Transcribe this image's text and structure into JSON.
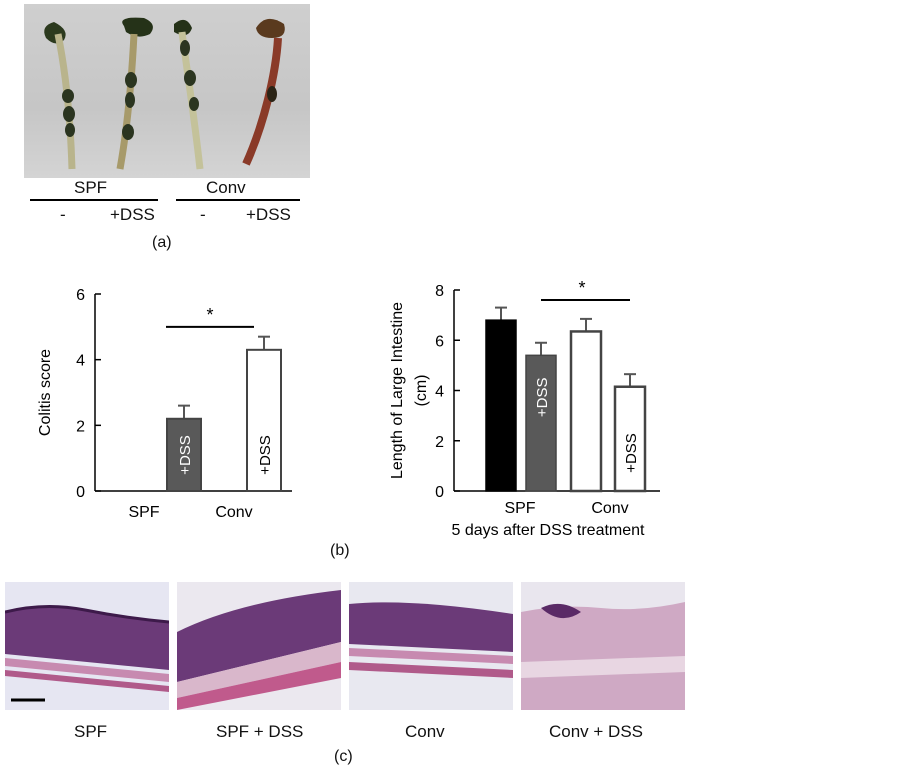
{
  "panel_a": {
    "label": "(a)",
    "groups": [
      {
        "name": "SPF",
        "conditions": [
          "-",
          "+DSS"
        ]
      },
      {
        "name": "Conv",
        "conditions": [
          "-",
          "+DSS"
        ]
      }
    ]
  },
  "panel_b": {
    "label": "(b)",
    "significance": "*",
    "bar_label": "+DSS"
  },
  "panel_c": {
    "label": "(c)",
    "captions": [
      "SPF",
      "SPF + DSS",
      "Conv",
      "Conv + DSS"
    ]
  },
  "colors": {
    "black_bar": "#000000",
    "grey_bar": "#595959",
    "white_bar": "#ffffff",
    "he_pink": "#c98db4",
    "he_purple": "#5a2a66"
  },
  "chart_data": [
    {
      "type": "bar",
      "title": "",
      "xlabel": "",
      "ylabel": "Colitis score",
      "ylim": [
        0,
        6
      ],
      "yticks": [
        0,
        2,
        4,
        6
      ],
      "categories": [
        "SPF",
        "Conv"
      ],
      "series": [
        {
          "name": "+DSS",
          "values": [
            2.2,
            4.3
          ],
          "errors": [
            0.4,
            0.4
          ],
          "fill": [
            "#595959",
            "#ffffff"
          ]
        }
      ],
      "significance": {
        "between": [
          "SPF",
          "Conv"
        ],
        "mark": "*"
      }
    },
    {
      "type": "bar",
      "title": "",
      "xlabel": "5 days after DSS treatment",
      "ylabel": "Length of Large Intestine (cm)",
      "ylabel_lines": [
        "Length of Large Intestine",
        "(cm)"
      ],
      "ylim": [
        0,
        8
      ],
      "yticks": [
        0,
        2,
        4,
        6,
        8
      ],
      "categories": [
        "SPF",
        "Conv"
      ],
      "bars": [
        {
          "group": "SPF",
          "condition": "-",
          "value": 6.8,
          "error": 0.5,
          "fill": "#000000"
        },
        {
          "group": "SPF",
          "condition": "+DSS",
          "value": 5.4,
          "error": 0.5,
          "fill": "#595959"
        },
        {
          "group": "Conv",
          "condition": "-",
          "value": 6.35,
          "error": 0.5,
          "fill": "#ffffff"
        },
        {
          "group": "Conv",
          "condition": "+DSS",
          "value": 4.15,
          "error": 0.5,
          "fill": "#ffffff"
        }
      ],
      "significance": {
        "between": [
          "SPF +DSS",
          "Conv"
        ],
        "mark": "*"
      }
    }
  ]
}
